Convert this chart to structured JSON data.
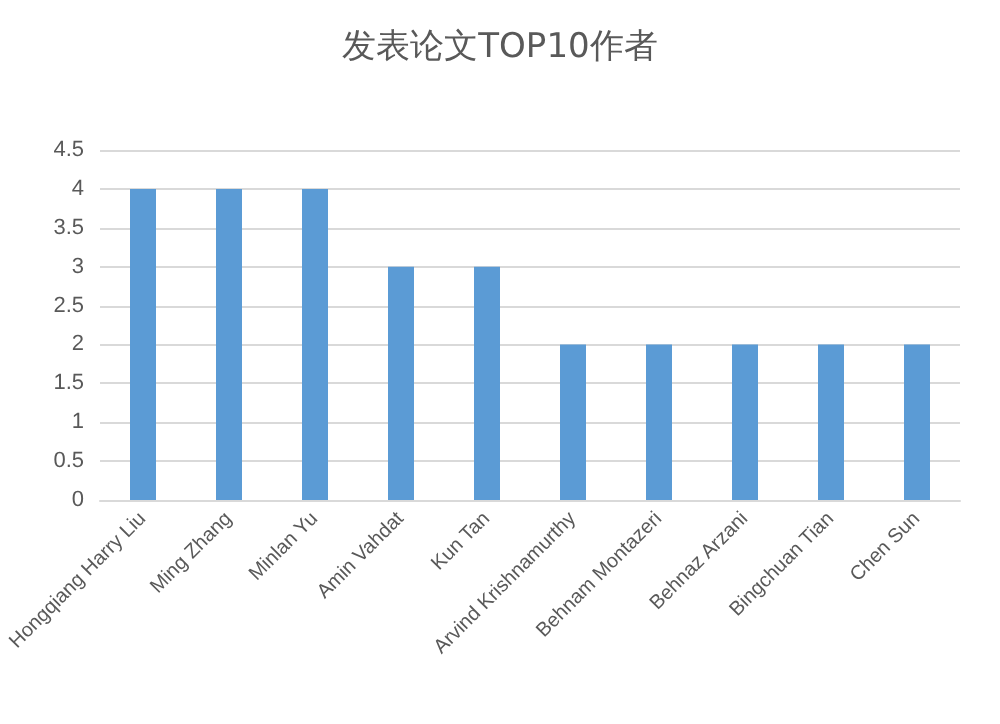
{
  "chart_data": {
    "type": "bar",
    "title": "发表论文TOP10作者",
    "categories": [
      "Hongqiang Harry Liu",
      "Ming Zhang",
      "Minlan Yu",
      "Amin Vahdat",
      "Kun Tan",
      "Arvind Krishnamurthy",
      "Behnam Montazeri",
      "Behnaz Arzani",
      "Bingchuan Tian",
      "Chen Sun"
    ],
    "values": [
      4,
      4,
      4,
      3,
      3,
      2,
      2,
      2,
      2,
      2
    ],
    "color": "#5b9bd5",
    "ylim": [
      0,
      4.5
    ],
    "yticks": [
      0,
      0.5,
      1,
      1.5,
      2,
      2.5,
      3,
      3.5,
      4,
      4.5
    ],
    "grid": "y"
  }
}
